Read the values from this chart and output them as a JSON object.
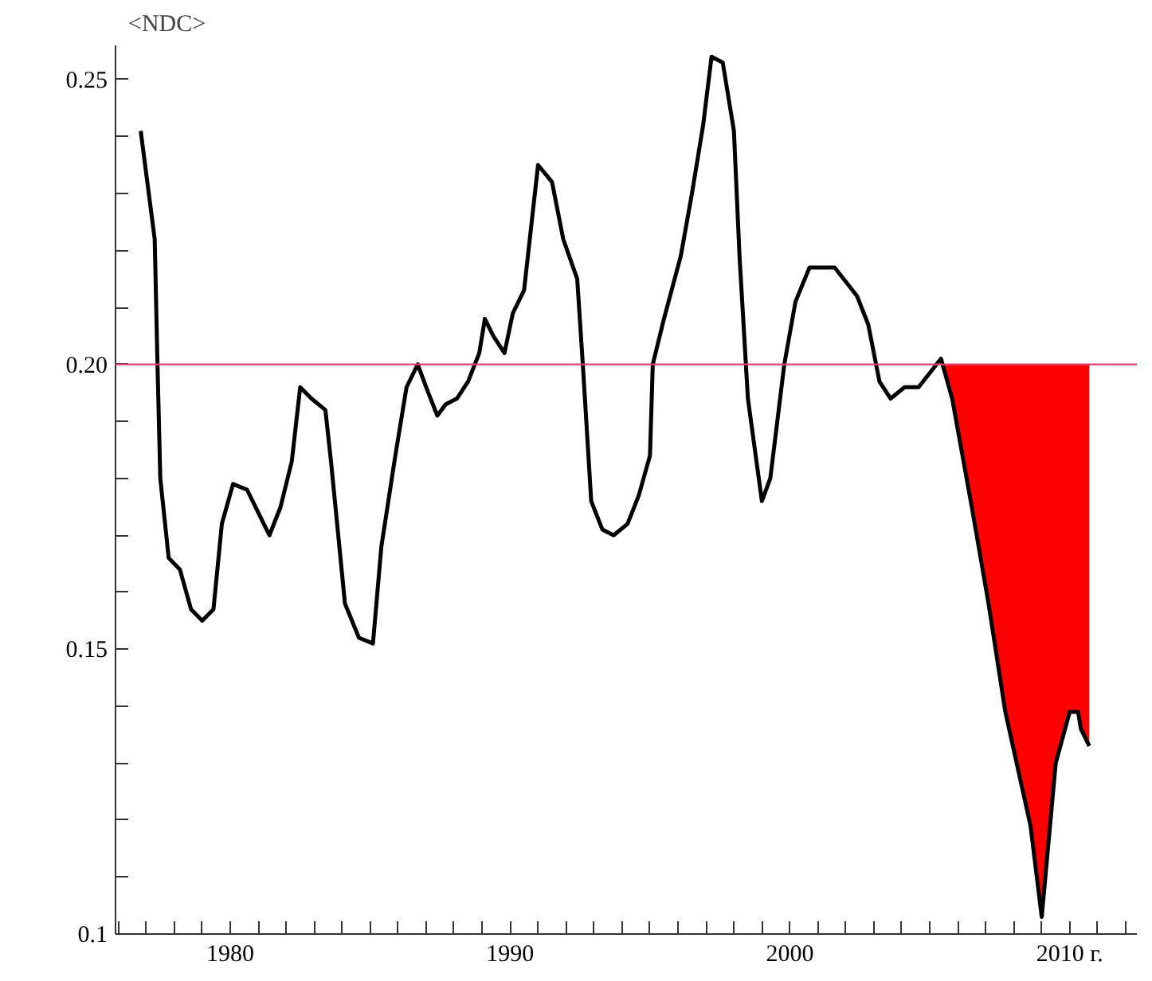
{
  "chart_data": {
    "type": "line",
    "ylabel": "<NDC>",
    "xlim": [
      1975.9,
      2012.4
    ],
    "ylim": [
      0.1,
      0.256
    ],
    "xticks": [
      {
        "value": 1976,
        "label": null
      },
      {
        "value": 1977,
        "label": null
      },
      {
        "value": 1978,
        "label": null
      },
      {
        "value": 1979,
        "label": null
      },
      1980,
      {
        "value": 1981,
        "label": null
      },
      {
        "value": 1982,
        "label": null
      },
      {
        "value": 1983,
        "label": null
      },
      {
        "value": 1984,
        "label": null
      },
      {
        "value": 1985,
        "label": null
      },
      {
        "value": 1986,
        "label": null
      },
      {
        "value": 1987,
        "label": null
      },
      {
        "value": 1988,
        "label": null
      },
      {
        "value": 1989,
        "label": null
      },
      1990,
      {
        "value": 1991,
        "label": null
      },
      {
        "value": 1992,
        "label": null
      },
      {
        "value": 1993,
        "label": null
      },
      {
        "value": 1994,
        "label": null
      },
      {
        "value": 1995,
        "label": null
      },
      {
        "value": 1996,
        "label": null
      },
      {
        "value": 1997,
        "label": null
      },
      {
        "value": 1998,
        "label": null
      },
      {
        "value": 1999,
        "label": null
      },
      2000,
      {
        "value": 2001,
        "label": null
      },
      {
        "value": 2002,
        "label": null
      },
      {
        "value": 2003,
        "label": null
      },
      {
        "value": 2004,
        "label": null
      },
      {
        "value": 2005,
        "label": null
      },
      {
        "value": 2006,
        "label": null
      },
      {
        "value": 2007,
        "label": null
      },
      {
        "value": 2008,
        "label": null
      },
      {
        "value": 2009,
        "label": null
      },
      {
        "value": 2010,
        "label": "2010 г."
      },
      {
        "value": 2011,
        "label": null
      },
      {
        "value": 2012,
        "label": null
      }
    ],
    "yticks": [
      {
        "value": 0.1,
        "label": "0.1"
      },
      {
        "value": 0.11,
        "label": null
      },
      {
        "value": 0.12,
        "label": null
      },
      {
        "value": 0.13,
        "label": null
      },
      {
        "value": 0.14,
        "label": null
      },
      0.15,
      {
        "value": 0.16,
        "label": null
      },
      {
        "value": 0.17,
        "label": null
      },
      {
        "value": 0.18,
        "label": null
      },
      {
        "value": 0.19,
        "label": null
      },
      {
        "value": 0.2,
        "label": "0.20"
      },
      {
        "value": 0.21,
        "label": null
      },
      {
        "value": 0.22,
        "label": null
      },
      {
        "value": 0.23,
        "label": null
      },
      {
        "value": 0.24,
        "label": null
      },
      0.25
    ],
    "grid": false,
    "marker": "none",
    "line_style": "solid",
    "ref_lines": [
      {
        "axis": "y",
        "value": 0.2,
        "color": "#e0406e"
      }
    ],
    "series": [
      {
        "color": "#000000",
        "lower": [
          null,
          null,
          null,
          null,
          null,
          null,
          null,
          null,
          null,
          null,
          null,
          null,
          null,
          null,
          null,
          null,
          null,
          null,
          null,
          null,
          null,
          null,
          null,
          null,
          null,
          null,
          null,
          null,
          null,
          null,
          null,
          null,
          null,
          null,
          null,
          null,
          null,
          null,
          null,
          null,
          null,
          null,
          null,
          null,
          null,
          null,
          null,
          null,
          null,
          null,
          null,
          null,
          null,
          null,
          null,
          null,
          null,
          null,
          null,
          null,
          null,
          null,
          null,
          null,
          null,
          null,
          null,
          null,
          null,
          null,
          null,
          0.201,
          0.194,
          0.175,
          0.158,
          0.139,
          0.119,
          0.103,
          0.13,
          0.139,
          0.139,
          0.136,
          0.133
        ],
        "upper": [
          null,
          null,
          null,
          null,
          null,
          null,
          null,
          null,
          null,
          null,
          null,
          null,
          null,
          null,
          null,
          null,
          null,
          null,
          null,
          null,
          null,
          null,
          null,
          null,
          null,
          null,
          null,
          null,
          null,
          null,
          null,
          null,
          null,
          null,
          null,
          null,
          null,
          null,
          null,
          null,
          null,
          null,
          null,
          null,
          null,
          null,
          null,
          null,
          null,
          null,
          null,
          null,
          null,
          null,
          null,
          null,
          null,
          null,
          null,
          null,
          null,
          null,
          null,
          null,
          null,
          null,
          null,
          null,
          null,
          null,
          null,
          0.2,
          0.2,
          0.2,
          0.2,
          0.2,
          0.2,
          0.2,
          0.2,
          0.2,
          0.2,
          0.2,
          0.2
        ],
        "x": [
          1976.8,
          1977.3,
          1977.4,
          1977.5,
          1977.8,
          1978.2,
          1978.6,
          1979.0,
          1979.4,
          1979.7,
          1980.1,
          1980.6,
          1981.0,
          1981.4,
          1981.8,
          1982.2,
          1982.5,
          1982.9,
          1983.4,
          1983.6,
          1984.1,
          1984.6,
          1985.1,
          1985.4,
          1985.9,
          1986.3,
          1986.7,
          1987.0,
          1987.4,
          1987.7,
          1988.1,
          1988.5,
          1988.9,
          1989.1,
          1989.4,
          1989.8,
          1990.1,
          1990.5,
          1991.0,
          1991.5,
          1991.9,
          1992.4,
          1992.6,
          1992.9,
          1993.3,
          1993.7,
          1994.2,
          1994.6,
          1995.0,
          1995.1,
          1995.5,
          1996.1,
          1996.5,
          1996.9,
          1997.2,
          1997.6,
          1998.0,
          1998.2,
          1998.5,
          1999.0,
          1999.3,
          1999.8,
          2000.2,
          2000.7,
          2001.6,
          2002.4,
          2002.8,
          2003.2,
          2003.6,
          2004.1,
          2004.6,
          2005.4,
          2005.8,
          2006.5,
          2007.1,
          2007.7,
          2008.6,
          2009.0,
          2009.5,
          2010.0,
          2010.3,
          2010.4,
          2010.7
        ],
        "values": [
          0.241,
          0.222,
          0.2,
          0.18,
          0.166,
          0.164,
          0.157,
          0.155,
          0.157,
          0.172,
          0.179,
          0.178,
          0.174,
          0.17,
          0.175,
          0.183,
          0.196,
          0.194,
          0.192,
          0.183,
          0.158,
          0.152,
          0.151,
          0.168,
          0.184,
          0.196,
          0.2,
          0.196,
          0.191,
          0.193,
          0.194,
          0.197,
          0.202,
          0.208,
          0.205,
          0.202,
          0.209,
          0.213,
          0.235,
          0.232,
          0.222,
          0.215,
          0.2,
          0.176,
          0.171,
          0.17,
          0.172,
          0.177,
          0.184,
          0.2,
          0.208,
          0.219,
          0.23,
          0.242,
          0.254,
          0.253,
          0.241,
          0.219,
          0.194,
          0.176,
          0.18,
          0.2,
          0.211,
          0.217,
          0.217,
          0.212,
          0.207,
          0.197,
          0.194,
          0.196,
          0.196,
          0.201,
          0.194,
          0.175,
          0.158,
          0.139,
          0.119,
          0.103,
          0.13,
          0.139,
          0.139,
          0.136,
          0.133
        ]
      }
    ]
  }
}
